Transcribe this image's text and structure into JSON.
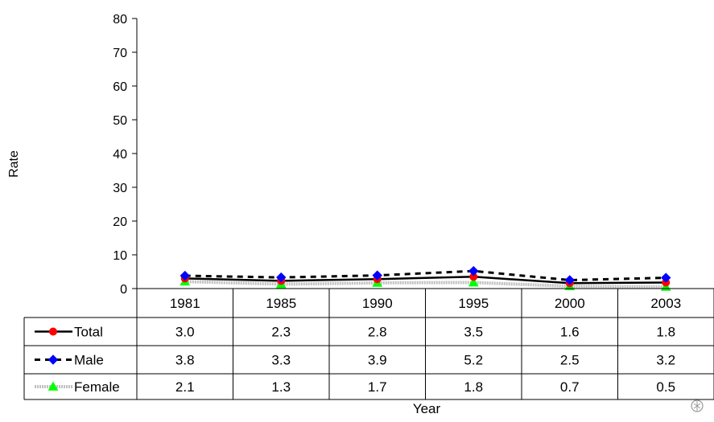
{
  "chart_data": {
    "type": "line",
    "ylabel": "Rate",
    "xlabel": "Year",
    "ylim": [
      0,
      80
    ],
    "y_ticks": [
      0,
      10,
      20,
      30,
      40,
      50,
      60,
      70,
      80
    ],
    "categories": [
      "1981",
      "1985",
      "1990",
      "1995",
      "2000",
      "2003"
    ],
    "grid": false,
    "legend_placement": "data-table-left",
    "series": [
      {
        "name": "Total",
        "values": [
          3.0,
          2.3,
          2.8,
          3.5,
          1.6,
          1.8
        ],
        "table_values": [
          "3.0",
          "2.3",
          "2.8",
          "3.5",
          "1.6",
          "1.8"
        ],
        "line_color": "#000000",
        "marker_color": "#ff0000",
        "line_style": "solid",
        "marker": "circle"
      },
      {
        "name": "Male",
        "values": [
          3.8,
          3.3,
          3.9,
          5.2,
          2.5,
          3.2
        ],
        "table_values": [
          "3.8",
          "3.3",
          "3.9",
          "5.2",
          "2.5",
          "3.2"
        ],
        "line_color": "#000000",
        "marker_color": "#0000ff",
        "line_style": "dashed",
        "marker": "diamond"
      },
      {
        "name": "Female",
        "values": [
          2.1,
          1.3,
          1.7,
          1.8,
          0.7,
          0.5
        ],
        "table_values": [
          "2.1",
          "1.3",
          "1.7",
          "1.8",
          "0.7",
          "0.5"
        ],
        "line_color": "#c0c0c0",
        "marker_color": "#00ff00",
        "line_style": "dotted-gray",
        "marker": "triangle"
      }
    ]
  }
}
